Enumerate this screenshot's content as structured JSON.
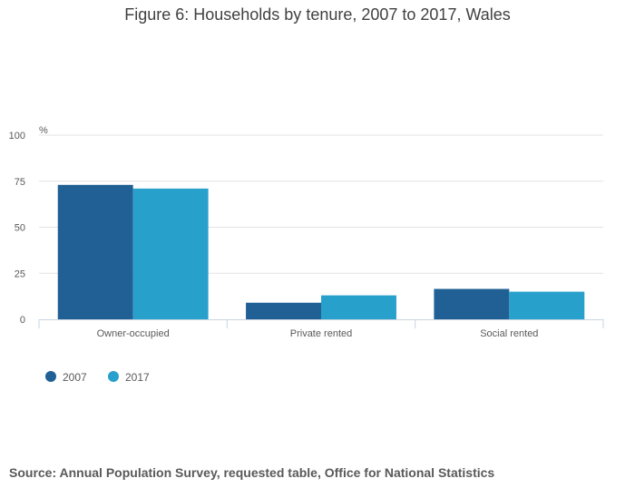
{
  "chart_data": {
    "type": "bar",
    "title": "Figure 6: Households by tenure, 2007 to 2017, Wales",
    "ylabel": "%",
    "xlabel": "",
    "ylim": [
      0,
      100
    ],
    "yticks": [
      0,
      25,
      50,
      75,
      100
    ],
    "categories": [
      "Owner-occupied",
      "Private rented",
      "Social rented"
    ],
    "series": [
      {
        "name": "2007",
        "color": "#206095",
        "values": [
          73,
          9,
          16.5
        ]
      },
      {
        "name": "2017",
        "color": "#27a0cc",
        "values": [
          71,
          13,
          15
        ]
      }
    ],
    "grid": true,
    "legend_position": "bottom-left"
  },
  "source": "Source: Annual Population Survey, requested table, Office for National Statistics"
}
